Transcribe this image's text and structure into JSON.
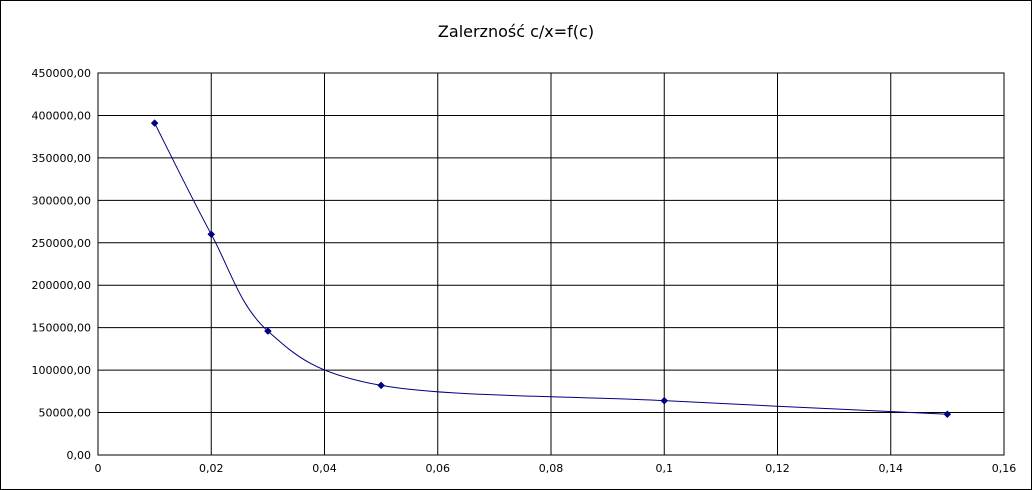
{
  "chart_data": {
    "type": "scatter",
    "title": "Zalerzność c/x=f(c)",
    "xlabel": "",
    "ylabel": "",
    "xlim": [
      0,
      0.16
    ],
    "ylim": [
      0,
      450000
    ],
    "x_ticks": [
      0,
      0.02,
      0.04,
      0.06,
      0.08,
      0.1,
      0.12,
      0.14,
      0.16
    ],
    "x_tick_labels": [
      "0",
      "0,02",
      "0,04",
      "0,06",
      "0,08",
      "0,1",
      "0,12",
      "0,14",
      "0,16"
    ],
    "y_ticks": [
      0,
      50000,
      100000,
      150000,
      200000,
      250000,
      300000,
      350000,
      400000,
      450000
    ],
    "y_tick_labels": [
      "0,00",
      "50000,00",
      "100000,00",
      "150000,00",
      "200000,00",
      "250000,00",
      "300000,00",
      "350000,00",
      "400000,00",
      "450000,00"
    ],
    "grid": true,
    "smooth_line": true,
    "series": [
      {
        "color": "#000080",
        "points": [
          {
            "x": 0.01,
            "y": 391000
          },
          {
            "x": 0.02,
            "y": 260000
          },
          {
            "x": 0.03,
            "y": 146000
          },
          {
            "x": 0.05,
            "y": 82000
          },
          {
            "x": 0.1,
            "y": 64000
          },
          {
            "x": 0.15,
            "y": 48000
          }
        ]
      }
    ]
  }
}
